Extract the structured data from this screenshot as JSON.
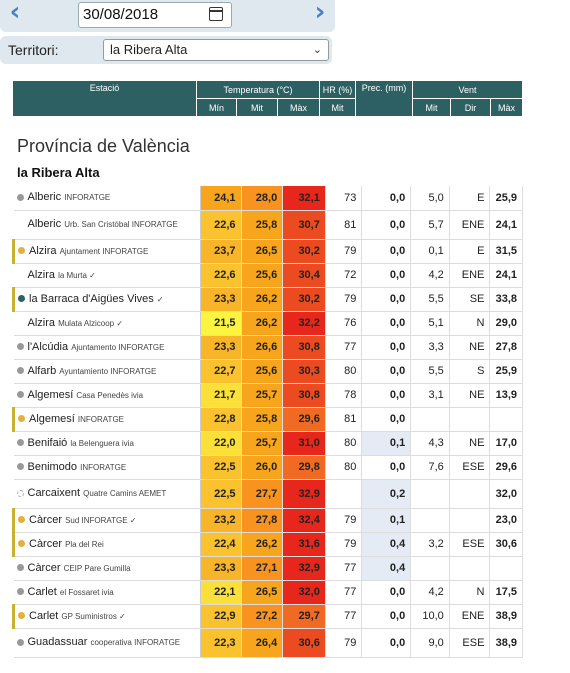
{
  "date": "30/08/2018",
  "territori": {
    "label": "Territori:",
    "value": "la Ribera Alta"
  },
  "header": {
    "estacio": "Estació",
    "temperatura": "Temperatura (°C)",
    "hr": "HR (%)",
    "prec": "Prec. (mm)",
    "vent": "Vent",
    "min": "Mín",
    "mit": "Mit",
    "max": "Màx",
    "hr_mit": "Mit",
    "vent_mit": "Mit",
    "vent_dir": "Dir",
    "vent_max": "Màx"
  },
  "province": "Província de València",
  "region": "la Ribera Alta",
  "colors": {
    "min_orange": "#f7a51c",
    "min_yellow": "#fbf542",
    "mit_orange": "#f7931e",
    "max_red": "#e8271c"
  },
  "rows": [
    {
      "name": "Alberic",
      "sub": "INFORATGE",
      "dot": "#999",
      "min": "24,1",
      "mit": "28,0",
      "max": "32,1",
      "hr": "73",
      "prec": "0,0",
      "vmit": "5,0",
      "vdir": "E",
      "vmax": "25,9",
      "minc": "#f7a51c",
      "mitc": "#f7931e",
      "maxc": "#e8271c",
      "tall": false,
      "check": false
    },
    {
      "name": "Alberic",
      "sub": "Urb. San Cristóbal INFORATGE",
      "dot": "",
      "min": "22,6",
      "mit": "25,8",
      "max": "30,7",
      "hr": "81",
      "prec": "0,0",
      "vmit": "5,7",
      "vdir": "ENE",
      "vmax": "24,1",
      "minc": "#f9c22e",
      "mitc": "#f7a51c",
      "maxc": "#ec4a20",
      "tall": true,
      "check": false
    },
    {
      "name": "Alzira",
      "sub": "Ajuntament INFORATGE",
      "dot": "#e0b040",
      "min": "23,7",
      "mit": "26,5",
      "max": "30,2",
      "hr": "79",
      "prec": "0,0",
      "vmit": "0,1",
      "vdir": "E",
      "vmax": "31,5",
      "minc": "#f9b52a",
      "mitc": "#f7a51c",
      "maxc": "#ec4a20",
      "tall": false,
      "check": false
    },
    {
      "name": "Alzira",
      "sub": "la Murta ✓",
      "dot": "",
      "min": "22,6",
      "mit": "25,6",
      "max": "30,4",
      "hr": "72",
      "prec": "0,0",
      "vmit": "4,2",
      "vdir": "ENE",
      "vmax": "24,1",
      "minc": "#f9c22e",
      "mitc": "#f7a51c",
      "maxc": "#ec4a20",
      "tall": false,
      "check": true
    },
    {
      "name": "la Barraca d'Aigües Vives",
      "sub": "✓",
      "dot": "#2d6063",
      "min": "23,3",
      "mit": "26,2",
      "max": "30,2",
      "hr": "79",
      "prec": "0,0",
      "vmit": "5,5",
      "vdir": "SE",
      "vmax": "33,8",
      "minc": "#f9b52a",
      "mitc": "#f7a51c",
      "maxc": "#ec4a20",
      "tall": false,
      "check": true
    },
    {
      "name": "Alzira",
      "sub": "Mulata Alzicoop ✓",
      "dot": "",
      "min": "21,5",
      "mit": "26,2",
      "max": "32,2",
      "hr": "76",
      "prec": "0,0",
      "vmit": "5,1",
      "vdir": "N",
      "vmax": "29,0",
      "minc": "#fbf542",
      "mitc": "#f7a51c",
      "maxc": "#e8271c",
      "tall": false,
      "check": true
    },
    {
      "name": "l'Alcúdia",
      "sub": "Ajuntamento INFORATGE",
      "dot": "#999",
      "min": "23,3",
      "mit": "26,6",
      "max": "30,8",
      "hr": "77",
      "prec": "0,0",
      "vmit": "3,3",
      "vdir": "NE",
      "vmax": "27,8",
      "minc": "#f9b52a",
      "mitc": "#f7a51c",
      "maxc": "#ec4a20",
      "tall": false,
      "check": false
    },
    {
      "name": "Alfarb",
      "sub": "Ayuntamiento INFORATGE",
      "dot": "#999",
      "min": "22,7",
      "mit": "25,6",
      "max": "30,3",
      "hr": "80",
      "prec": "0,0",
      "vmit": "5,5",
      "vdir": "S",
      "vmax": "25,9",
      "minc": "#f9c22e",
      "mitc": "#f7a51c",
      "maxc": "#ec4a20",
      "tall": false,
      "check": false
    },
    {
      "name": "Algemesí",
      "sub": "Casa Penedès ivia",
      "dot": "#999",
      "min": "21,7",
      "mit": "25,7",
      "max": "30,8",
      "hr": "78",
      "prec": "0,0",
      "vmit": "3,1",
      "vdir": "NE",
      "vmax": "13,9",
      "minc": "#fbe03a",
      "mitc": "#f7a51c",
      "maxc": "#ec4a20",
      "tall": false,
      "check": false
    },
    {
      "name": "Algemesí",
      "sub": "INFORATGE",
      "dot": "#e0b040",
      "min": "22,8",
      "mit": "25,8",
      "max": "29,6",
      "hr": "81",
      "prec": "0,0",
      "vmit": "",
      "vdir": "",
      "vmax": "",
      "minc": "#f9c22e",
      "mitc": "#f7a51c",
      "maxc": "#f06a24",
      "tall": false,
      "check": false
    },
    {
      "name": "Benifaió",
      "sub": "la Belenguera ivia",
      "dot": "#999",
      "min": "22,0",
      "mit": "25,7",
      "max": "31,0",
      "hr": "80",
      "prec": "0,1",
      "vmit": "4,3",
      "vdir": "NE",
      "vmax": "17,0",
      "minc": "#fbe03a",
      "mitc": "#f7a51c",
      "maxc": "#e8271c",
      "tall": false,
      "check": false,
      "preclight": true
    },
    {
      "name": "Benimodo",
      "sub": "INFORATGE",
      "dot": "#999",
      "min": "22,5",
      "mit": "26,0",
      "max": "29,8",
      "hr": "80",
      "prec": "0,0",
      "vmit": "7,6",
      "vdir": "ESE",
      "vmax": "29,6",
      "minc": "#f9c22e",
      "mitc": "#f7a51c",
      "maxc": "#f06a24",
      "tall": false,
      "check": false
    },
    {
      "name": "Carcaixent",
      "sub": "Quatre Camins AEMET",
      "dot": "hollow",
      "min": "22,5",
      "mit": "27,7",
      "max": "32,9",
      "hr": "",
      "prec": "0,2",
      "vmit": "",
      "vdir": "",
      "vmax": "32,0",
      "minc": "#f9c22e",
      "mitc": "#f7931e",
      "maxc": "#e8271c",
      "tall": true,
      "check": false,
      "preclight": true
    },
    {
      "name": "Càrcer",
      "sub": "Sud INFORATGE ✓",
      "dot": "#e0b040",
      "min": "23,2",
      "mit": "27,8",
      "max": "32,4",
      "hr": "79",
      "prec": "0,1",
      "vmit": "",
      "vdir": "",
      "vmax": "23,0",
      "minc": "#f9b52a",
      "mitc": "#f7931e",
      "maxc": "#e8271c",
      "tall": false,
      "check": true,
      "preclight": true
    },
    {
      "name": "Càrcer",
      "sub": "Pla del Rei",
      "dot": "#e0b040",
      "min": "22,4",
      "mit": "26,2",
      "max": "31,6",
      "hr": "79",
      "prec": "0,4",
      "vmit": "3,2",
      "vdir": "ESE",
      "vmax": "30,6",
      "minc": "#f9c22e",
      "mitc": "#f7a51c",
      "maxc": "#e8271c",
      "tall": false,
      "check": false,
      "preclight": true
    },
    {
      "name": "Càrcer",
      "sub": "CEIP Pare Gumilla",
      "dot": "#999",
      "min": "23,3",
      "mit": "27,1",
      "max": "32,9",
      "hr": "77",
      "prec": "0,4",
      "vmit": "",
      "vdir": "",
      "vmax": "",
      "minc": "#f9b52a",
      "mitc": "#f7931e",
      "maxc": "#e8271c",
      "tall": false,
      "check": false,
      "preclight": true
    },
    {
      "name": "Carlet",
      "sub": "el Fossaret ivia",
      "dot": "#999",
      "min": "22,1",
      "mit": "26,5",
      "max": "32,0",
      "hr": "77",
      "prec": "0,0",
      "vmit": "4,2",
      "vdir": "N",
      "vmax": "17,5",
      "minc": "#fbe03a",
      "mitc": "#f7a51c",
      "maxc": "#e8271c",
      "tall": false,
      "check": false
    },
    {
      "name": "Carlet",
      "sub": "GP Suministros ✓",
      "dot": "#e0b040",
      "min": "22,9",
      "mit": "27,2",
      "max": "29,7",
      "hr": "77",
      "prec": "0,0",
      "vmit": "10,0",
      "vdir": "ENE",
      "vmax": "38,9",
      "minc": "#f9c22e",
      "mitc": "#f7931e",
      "maxc": "#f06a24",
      "tall": false,
      "check": true
    },
    {
      "name": "Guadassuar",
      "sub": "cooperativa INFORATGE",
      "dot": "#999",
      "min": "22,3",
      "mit": "26,4",
      "max": "30,6",
      "hr": "79",
      "prec": "0,0",
      "vmit": "9,0",
      "vdir": "ESE",
      "vmax": "38,9",
      "minc": "#f9c22e",
      "mitc": "#f7a51c",
      "maxc": "#ec4a20",
      "tall": true,
      "check": false
    }
  ]
}
